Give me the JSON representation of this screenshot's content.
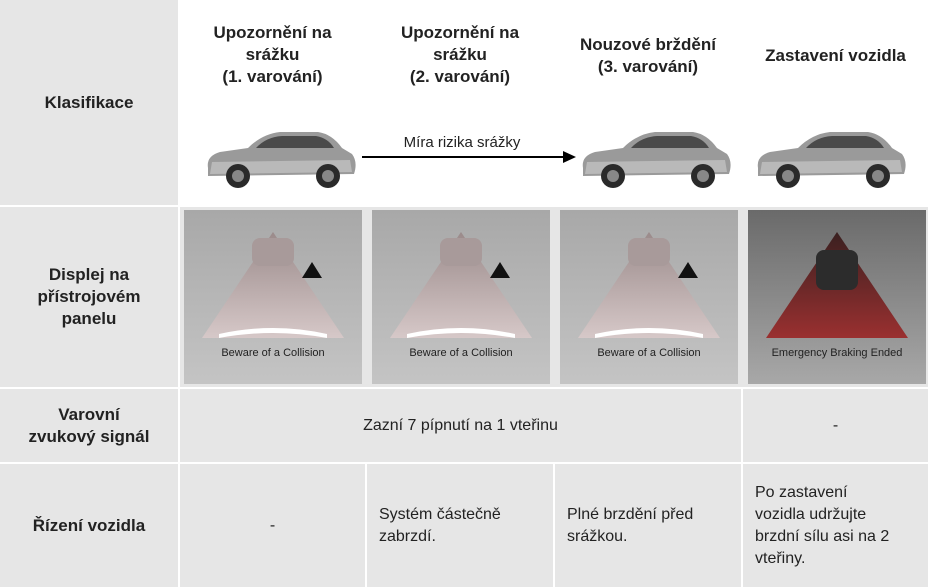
{
  "header": {
    "label": "Klasifikace",
    "columns": [
      "Upozornění na\nsrážku\n(1. varování)",
      "Upozornění na\nsrážku\n(2. varování)",
      "Nouzové brždění\n(3. varování)",
      "Zastavení vozidla"
    ],
    "arrow_label": "Míra rizika srážky"
  },
  "display": {
    "label": "Displej na\npřístrojovém\npanelu",
    "captions": [
      "Beware of a Collision",
      "Beware of a Collision",
      "Beware of a Collision",
      "Emergency Braking Ended"
    ]
  },
  "warning": {
    "label": "Varovní\nzvukový signál",
    "sound": "Zazní 7 pípnutí na 1 vteřinu",
    "stopped": "-"
  },
  "control": {
    "label": "Řízení vozidla",
    "cells": [
      "-",
      "Systém částečně\nzabrzdí.",
      "Plné brzdění před\nsrážkou.",
      "Po zastavení\nvozidla udržujte\nbrzdní sílu asi na 2\nvteřiny."
    ]
  }
}
